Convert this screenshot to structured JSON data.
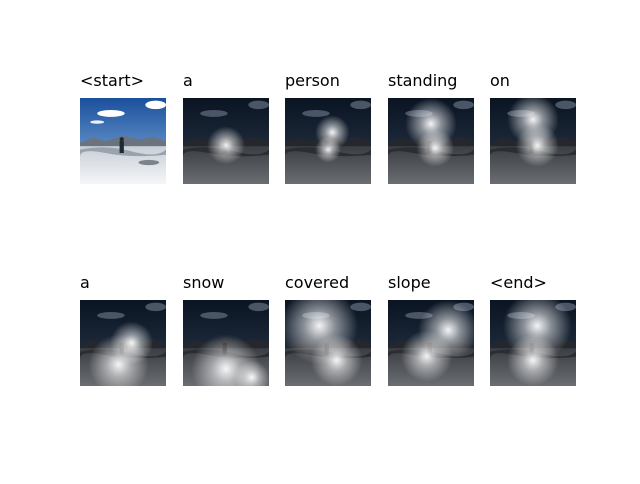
{
  "words": [
    "<start>",
    "a",
    "person",
    "standing",
    "on",
    "a",
    "snow",
    "covered",
    "slope",
    "<end>"
  ]
}
